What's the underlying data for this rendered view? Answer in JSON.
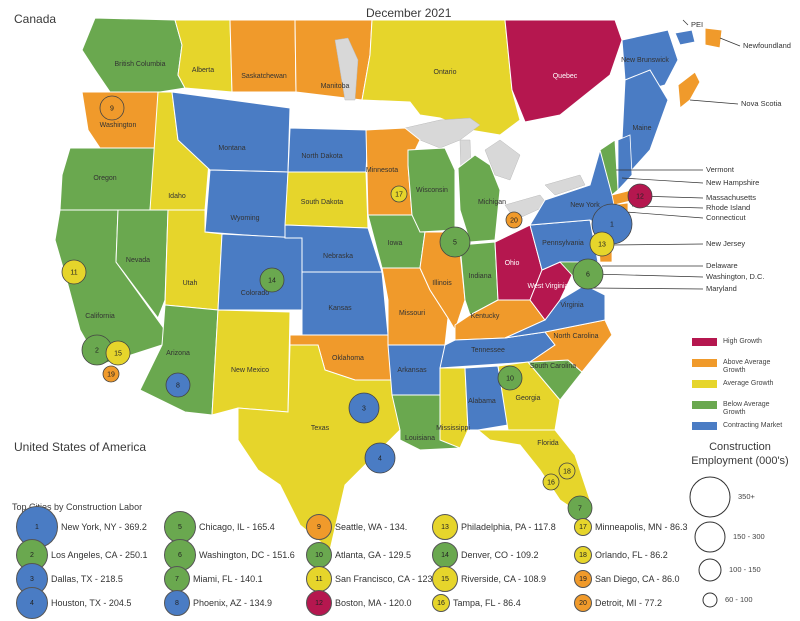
{
  "map": {
    "title": "December 2021",
    "canada_label": "Canada",
    "usa_label": "United States of America",
    "colors": {
      "high": "#b5174f",
      "above": "#f09a2b",
      "average": "#e6d52b",
      "below": "#6aa84f",
      "contracting": "#4a7cc4",
      "water": "#d8d8d8"
    },
    "provinces": [
      {
        "name": "British Columbia",
        "growth": "below"
      },
      {
        "name": "Alberta",
        "growth": "average"
      },
      {
        "name": "Saskatchewan",
        "growth": "above"
      },
      {
        "name": "Manitoba",
        "growth": "above"
      },
      {
        "name": "Ontario",
        "growth": "average"
      },
      {
        "name": "Quebec",
        "growth": "high"
      },
      {
        "name": "New Brunswick",
        "growth": "contracting"
      },
      {
        "name": "PEI",
        "growth": "contracting"
      },
      {
        "name": "Newfoundland",
        "growth": "above"
      },
      {
        "name": "Nova Scotia",
        "growth": "above"
      }
    ],
    "states": [
      {
        "name": "Washington",
        "growth": "above"
      },
      {
        "name": "Oregon",
        "growth": "below"
      },
      {
        "name": "California",
        "growth": "below"
      },
      {
        "name": "Idaho",
        "growth": "average"
      },
      {
        "name": "Nevada",
        "growth": "below"
      },
      {
        "name": "Montana",
        "growth": "contracting"
      },
      {
        "name": "Wyoming",
        "growth": "contracting"
      },
      {
        "name": "Utah",
        "growth": "average"
      },
      {
        "name": "Arizona",
        "growth": "below"
      },
      {
        "name": "Colorado",
        "growth": "contracting"
      },
      {
        "name": "New Mexico",
        "growth": "average"
      },
      {
        "name": "North Dakota",
        "growth": "contracting"
      },
      {
        "name": "South Dakota",
        "growth": "average"
      },
      {
        "name": "Nebraska",
        "growth": "contracting"
      },
      {
        "name": "Kansas",
        "growth": "contracting"
      },
      {
        "name": "Oklahoma",
        "growth": "above"
      },
      {
        "name": "Texas",
        "growth": "average"
      },
      {
        "name": "Minnesota",
        "growth": "above"
      },
      {
        "name": "Iowa",
        "growth": "below"
      },
      {
        "name": "Missouri",
        "growth": "above"
      },
      {
        "name": "Arkansas",
        "growth": "contracting"
      },
      {
        "name": "Louisiana",
        "growth": "below"
      },
      {
        "name": "Wisconsin",
        "growth": "below"
      },
      {
        "name": "Illinois",
        "growth": "above"
      },
      {
        "name": "Michigan",
        "growth": "below"
      },
      {
        "name": "Indiana",
        "growth": "below"
      },
      {
        "name": "Ohio",
        "growth": "high"
      },
      {
        "name": "Kentucky",
        "growth": "above"
      },
      {
        "name": "Tennessee",
        "growth": "contracting"
      },
      {
        "name": "Mississippi",
        "growth": "average"
      },
      {
        "name": "Alabama",
        "growth": "contracting"
      },
      {
        "name": "Georgia",
        "growth": "average"
      },
      {
        "name": "Florida",
        "growth": "average"
      },
      {
        "name": "South Carolina",
        "growth": "below"
      },
      {
        "name": "North Carolina",
        "growth": "above"
      },
      {
        "name": "Virginia",
        "growth": "contracting"
      },
      {
        "name": "West Virginia",
        "growth": "high"
      },
      {
        "name": "Pennsylvania",
        "growth": "contracting"
      },
      {
        "name": "New York",
        "growth": "contracting"
      },
      {
        "name": "Vermont",
        "growth": "below"
      },
      {
        "name": "Maine",
        "growth": "contracting"
      }
    ],
    "callouts": [
      "Newfoundland",
      "Nova Scotia",
      "PEI",
      "Vermont",
      "New Hampshire",
      "Massachusetts",
      "Rhode Island",
      "Connecticut",
      "New Jersey",
      "Delaware",
      "Washington, D.C.",
      "Maryland"
    ]
  },
  "legend": {
    "items": [
      {
        "label": "High Growth",
        "growth": "high"
      },
      {
        "label": "Above Average Growth",
        "growth": "above"
      },
      {
        "label": "Average Growth",
        "growth": "average"
      },
      {
        "label": "Below Average Growth",
        "growth": "below"
      },
      {
        "label": "Contracting Market",
        "growth": "contracting"
      }
    ]
  },
  "size_legend": {
    "title": "Construction Employment (000's)",
    "items": [
      "350+",
      "150 - 300",
      "100 - 150",
      "60 - 100"
    ]
  },
  "top_cities": {
    "title": "Top Cities by Construction Labor",
    "cities": [
      {
        "rank": "1",
        "label": "New York, NY - 369.2",
        "value": 369.2,
        "growth": "contracting"
      },
      {
        "rank": "2",
        "label": "Los Angeles, CA - 250.1",
        "value": 250.1,
        "growth": "below"
      },
      {
        "rank": "3",
        "label": "Dallas, TX - 218.5",
        "value": 218.5,
        "growth": "contracting"
      },
      {
        "rank": "4",
        "label": "Houston, TX - 204.5",
        "value": 204.5,
        "growth": "contracting"
      },
      {
        "rank": "5",
        "label": "Chicago, IL - 165.4",
        "value": 165.4,
        "growth": "below"
      },
      {
        "rank": "6",
        "label": "Washington, DC - 151.6",
        "value": 151.6,
        "growth": "below"
      },
      {
        "rank": "7",
        "label": "Miami, FL - 140.1",
        "value": 140.1,
        "growth": "below"
      },
      {
        "rank": "8",
        "label": "Phoenix, AZ - 134.9",
        "value": 134.9,
        "growth": "contracting"
      },
      {
        "rank": "9",
        "label": "Seattle, WA - 134.",
        "value": 134.0,
        "growth": "above"
      },
      {
        "rank": "10",
        "label": "Atlanta, GA - 129.5",
        "value": 129.5,
        "growth": "below"
      },
      {
        "rank": "11",
        "label": "San Francisco, CA - 123.7",
        "value": 123.7,
        "growth": "average"
      },
      {
        "rank": "12",
        "label": "Boston, MA - 120.0",
        "value": 120.0,
        "growth": "high"
      },
      {
        "rank": "13",
        "label": "Philadelphia, PA - 117.8",
        "value": 117.8,
        "growth": "average"
      },
      {
        "rank": "14",
        "label": "Denver, CO - 109.2",
        "value": 109.2,
        "growth": "below"
      },
      {
        "rank": "15",
        "label": "Riverside, CA - 108.9",
        "value": 108.9,
        "growth": "average"
      },
      {
        "rank": "16",
        "label": "Tampa, FL - 86.4",
        "value": 86.4,
        "growth": "average"
      },
      {
        "rank": "17",
        "label": "Minneapolis, MN - 86.3",
        "value": 86.3,
        "growth": "average"
      },
      {
        "rank": "18",
        "label": "Orlando, FL - 86.2",
        "value": 86.2,
        "growth": "average"
      },
      {
        "rank": "19",
        "label": "San Diego, CA - 86.0",
        "value": 86.0,
        "growth": "above"
      },
      {
        "rank": "20",
        "label": "Detroit, MI - 77.2",
        "value": 77.2,
        "growth": "above"
      }
    ]
  }
}
